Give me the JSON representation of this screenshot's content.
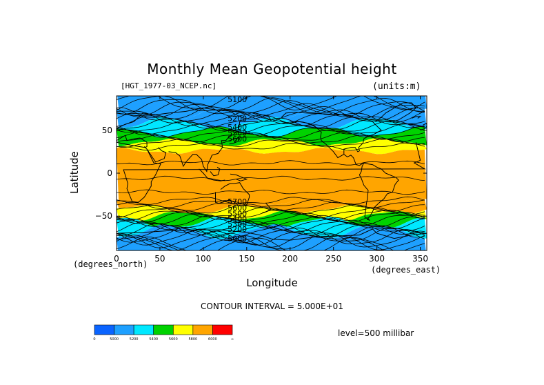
{
  "chart_data": {
    "type": "heatmap",
    "title": "Monthly Mean Geopotential height",
    "file_name": "[HGT_1977-03_NCEP.nc]",
    "units": "(units:m)",
    "xlabel": "Longitude",
    "ylabel": "Latitude",
    "x_unit_label": "(degrees_east)",
    "y_unit_label": "(degrees_north)",
    "xlim": [
      0,
      357.5
    ],
    "ylim": [
      -90,
      90
    ],
    "x_ticks": [
      0,
      50,
      100,
      150,
      200,
      250,
      300,
      350
    ],
    "y_ticks": [
      -50,
      0,
      50
    ],
    "contour_interval": "CONTOUR INTERVAL = 5.000E+01",
    "level": "level=500 millibar",
    "contour_labels": [
      "5100",
      "5200",
      "5400",
      "5600",
      "5500",
      "5700",
      "5300",
      "5000"
    ],
    "colorbar": {
      "labels": [
        "0",
        "5000",
        "5200",
        "5400",
        "5600",
        "5800",
        "6000",
        "∞"
      ],
      "colors": [
        "#0a64ff",
        "#1ea0ff",
        "#00e8ff",
        "#00d200",
        "#ffff00",
        "#ffa500",
        "#ff0000"
      ]
    },
    "zonal_profile": [
      {
        "lat": 90,
        "level": 1
      },
      {
        "lat": 68,
        "level": 1
      },
      {
        "lat": 58,
        "level": 2
      },
      {
        "lat": 48,
        "level": 3
      },
      {
        "lat": 36,
        "level": 4
      },
      {
        "lat": 26,
        "level": 5
      },
      {
        "lat": -34,
        "level": 5
      },
      {
        "lat": -42,
        "level": 4
      },
      {
        "lat": -50,
        "level": 3
      },
      {
        "lat": -58,
        "level": 2
      },
      {
        "lat": -68,
        "level": 1
      },
      {
        "lat": -90,
        "level": 0
      }
    ]
  }
}
